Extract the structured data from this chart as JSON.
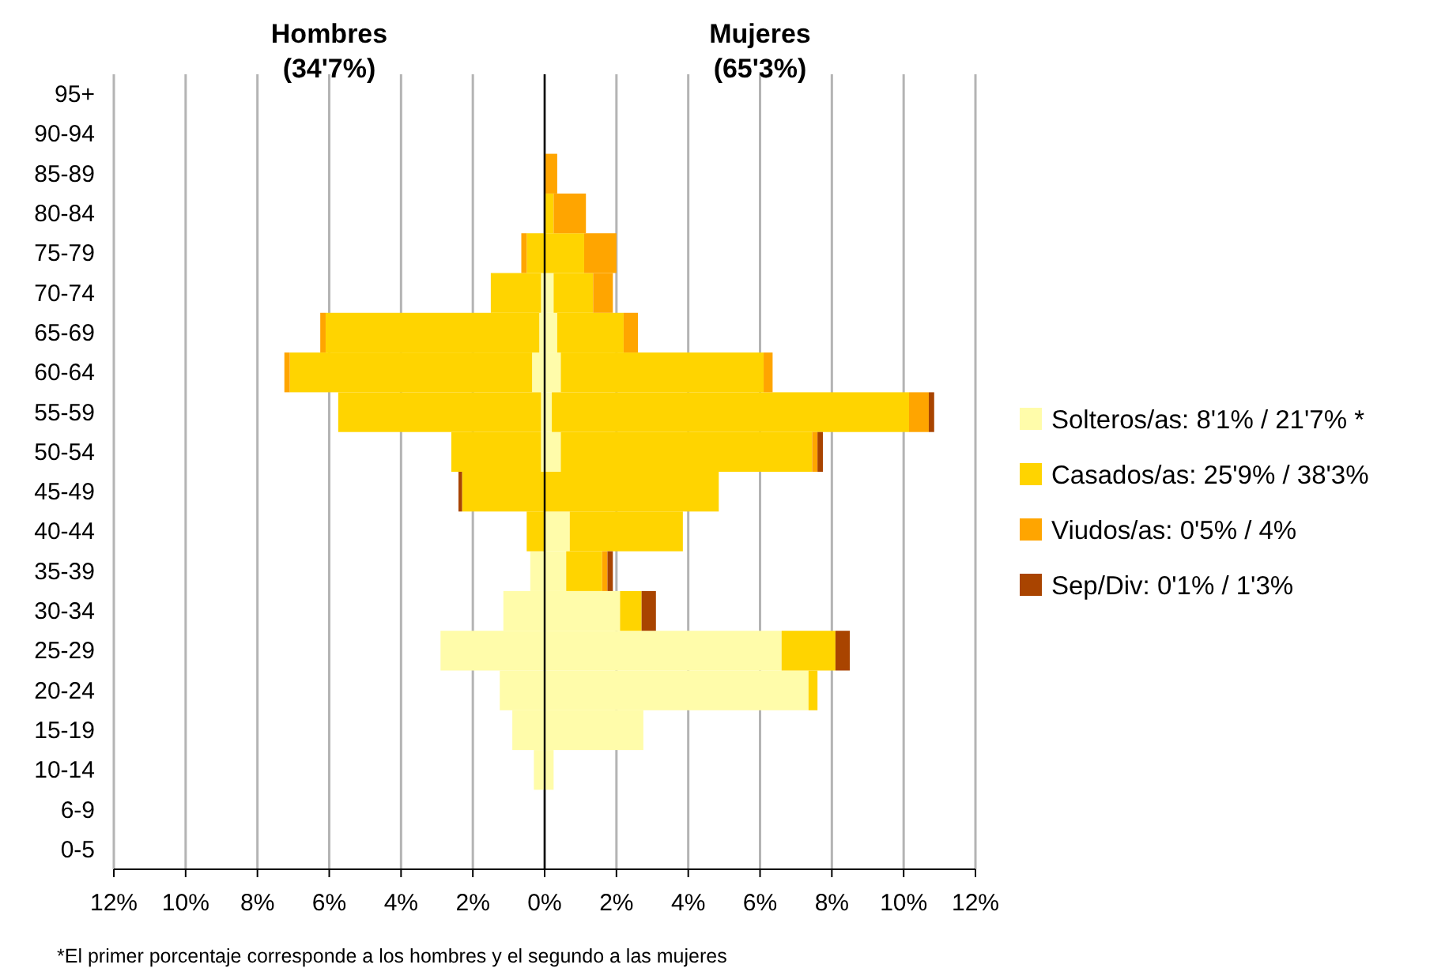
{
  "chart_data": {
    "type": "bar",
    "orientation": "horizontal",
    "stacked": true,
    "categories": [
      "95+",
      "90-94",
      "85-89",
      "80-84",
      "75-79",
      "70-74",
      "65-69",
      "60-64",
      "55-59",
      "50-54",
      "45-49",
      "40-44",
      "35-39",
      "30-34",
      "25-29",
      "20-24",
      "15-19",
      "10-14",
      "6-9",
      "0-5"
    ],
    "series": [
      {
        "name": "Solteros/as: 8'1% / 21'7% *",
        "color": "#fffcaa",
        "values": [
          0,
          0,
          0,
          0,
          0,
          -0.1,
          -0.15,
          -0.35,
          -0.1,
          -0.1,
          0,
          0,
          -0.4,
          -1.15,
          -2.9,
          -1.25,
          -0.9,
          -0.3,
          0,
          0
        ]
      },
      {
        "name": "Casados/as: 25'9% / 38'3%",
        "color": "#ffd400",
        "values": [
          0,
          0,
          0,
          0,
          -0.5,
          -1.4,
          -5.95,
          -6.75,
          -5.65,
          -2.5,
          -2.3,
          -0.5,
          0,
          0,
          0,
          0,
          0,
          0,
          0,
          0
        ]
      },
      {
        "name": "Viudos/as: 0'5% / 4%",
        "color": "#ffa500",
        "values": [
          0,
          0,
          0,
          0,
          -0.15,
          0,
          -0.15,
          -0.15,
          0,
          0,
          0,
          0,
          0,
          0,
          0,
          0,
          0,
          0,
          0,
          0
        ]
      },
      {
        "name": "Sep/Div: 0'1% / 1'3%",
        "color": "#a94400",
        "values": [
          0,
          0,
          0,
          0,
          0,
          0,
          0,
          0,
          0,
          0,
          -0.1,
          0,
          0,
          0,
          0,
          0,
          0,
          0,
          0,
          0
        ]
      },
      {
        "color": "#fffcaa",
        "values": [
          0,
          0,
          0,
          0,
          0,
          0.25,
          0.35,
          0.45,
          0.2,
          0.45,
          0,
          0.7,
          0.6,
          2.1,
          6.6,
          7.35,
          2.75,
          0.25,
          0,
          0
        ]
      },
      {
        "color": "#ffd400",
        "values": [
          0,
          0,
          0,
          0.25,
          1.1,
          1.1,
          1.85,
          5.65,
          9.95,
          7,
          4.85,
          3.15,
          1,
          0.6,
          1.5,
          0.25,
          0,
          0,
          0,
          0
        ]
      },
      {
        "color": "#ffa500",
        "values": [
          0,
          0,
          0.35,
          0.9,
          0.9,
          0.55,
          0.4,
          0.25,
          0.55,
          0.15,
          0,
          0,
          0.15,
          0,
          0,
          0,
          0,
          0,
          0,
          0
        ]
      },
      {
        "color": "#a94400",
        "values": [
          0,
          0,
          0,
          0,
          0,
          0,
          0,
          0,
          0.15,
          0.15,
          0,
          0,
          0.15,
          0.4,
          0.4,
          0,
          0,
          0,
          0,
          0
        ]
      }
    ],
    "xlim": [
      -12,
      12
    ],
    "xticks": [
      {
        "value": -12,
        "label": "12%"
      },
      {
        "value": -10,
        "label": "10%"
      },
      {
        "value": -8,
        "label": "8%"
      },
      {
        "value": -6,
        "label": "6%"
      },
      {
        "value": -4,
        "label": "4%"
      },
      {
        "value": -2,
        "label": "2%"
      },
      {
        "value": 0,
        "label": "0%"
      },
      {
        "value": 2,
        "label": "2%"
      },
      {
        "value": 4,
        "label": "4%"
      },
      {
        "value": 6,
        "label": "6%"
      },
      {
        "value": 8,
        "label": "8%"
      },
      {
        "value": 10,
        "label": "10%"
      },
      {
        "value": 12,
        "label": "12%"
      }
    ],
    "grid": "x",
    "legend": "right",
    "annotations": [
      "Hombres\n(34'7%)",
      "Mujeres\n(65'3%)",
      "*El primer porcentaje corresponde a los hombres y el segundo a las mujeres"
    ]
  }
}
